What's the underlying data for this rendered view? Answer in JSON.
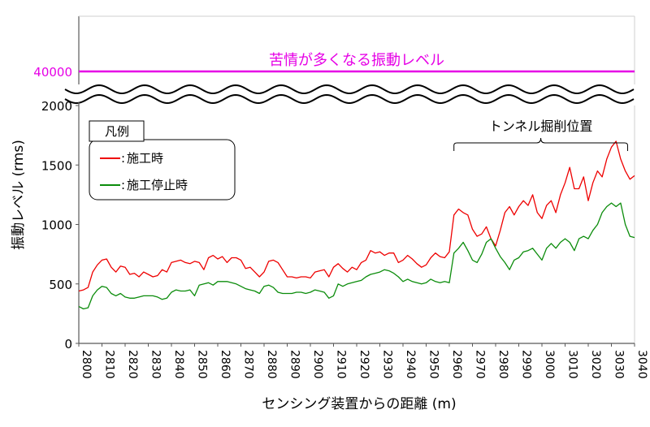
{
  "chart_data": {
    "type": "line",
    "xlabel": "センシング装置からの距離 (m)",
    "ylabel": "振動レベル (rms)",
    "xlim": [
      2800,
      3040
    ],
    "ylim": [
      0,
      2000
    ],
    "x_ticks": [
      2800,
      2810,
      2820,
      2830,
      2840,
      2850,
      2860,
      2870,
      2880,
      2890,
      2900,
      2910,
      2920,
      2930,
      2940,
      2950,
      2960,
      2970,
      2980,
      2990,
      3000,
      3010,
      3020,
      3030,
      3040
    ],
    "y_ticks": [
      0,
      500,
      1000,
      1500,
      2000
    ],
    "y_scale_note": "axis break between 2000 and 40000",
    "threshold": {
      "value": 40000,
      "value_label": "40000",
      "label": "苦情が多くなる振動レベル",
      "color": "#e600e6"
    },
    "legend": {
      "title": "凡例",
      "position": "top-left",
      "entries": [
        "施工時",
        "施工停止時"
      ]
    },
    "annotation": {
      "text": "トンネル掘削位置",
      "x_range": [
        2962,
        3037
      ]
    },
    "series": [
      {
        "name": "施工時",
        "color": "#ee0000",
        "x": [
          2800,
          2802,
          2804,
          2806,
          2808,
          2810,
          2812,
          2814,
          2816,
          2818,
          2820,
          2822,
          2824,
          2826,
          2828,
          2830,
          2832,
          2834,
          2836,
          2838,
          2840,
          2842,
          2844,
          2846,
          2848,
          2850,
          2852,
          2854,
          2856,
          2858,
          2860,
          2862,
          2864,
          2866,
          2868,
          2870,
          2872,
          2874,
          2876,
          2878,
          2880,
          2882,
          2884,
          2886,
          2888,
          2890,
          2892,
          2894,
          2896,
          2898,
          2900,
          2902,
          2904,
          2906,
          2908,
          2910,
          2912,
          2914,
          2916,
          2918,
          2920,
          2922,
          2924,
          2926,
          2928,
          2930,
          2932,
          2934,
          2936,
          2938,
          2940,
          2942,
          2944,
          2946,
          2948,
          2950,
          2952,
          2954,
          2956,
          2958,
          2960,
          2962,
          2964,
          2966,
          2968,
          2970,
          2972,
          2974,
          2976,
          2978,
          2980,
          2982,
          2984,
          2986,
          2988,
          2990,
          2992,
          2994,
          2996,
          2998,
          3000,
          3002,
          3004,
          3006,
          3008,
          3010,
          3012,
          3014,
          3016,
          3018,
          3020,
          3022,
          3024,
          3026,
          3028,
          3030,
          3032,
          3034,
          3036,
          3038,
          3040
        ],
        "values": [
          440,
          450,
          470,
          600,
          660,
          700,
          710,
          640,
          600,
          650,
          640,
          580,
          590,
          560,
          600,
          580,
          560,
          570,
          620,
          600,
          680,
          690,
          700,
          680,
          670,
          690,
          680,
          620,
          720,
          740,
          710,
          730,
          680,
          720,
          720,
          700,
          630,
          640,
          600,
          560,
          600,
          690,
          700,
          680,
          620,
          560,
          560,
          550,
          560,
          560,
          550,
          600,
          610,
          620,
          560,
          640,
          670,
          630,
          600,
          640,
          620,
          680,
          700,
          780,
          760,
          770,
          740,
          760,
          760,
          680,
          700,
          740,
          710,
          670,
          640,
          660,
          720,
          760,
          730,
          720,
          770,
          1080,
          1130,
          1100,
          1080,
          960,
          900,
          920,
          980,
          880,
          820,
          950,
          1100,
          1150,
          1080,
          1150,
          1200,
          1160,
          1250,
          1100,
          1050,
          1160,
          1200,
          1100,
          1250,
          1350,
          1480,
          1300,
          1300,
          1400,
          1200,
          1350,
          1450,
          1400,
          1550,
          1650,
          1700,
          1550,
          1450,
          1380,
          1410
        ]
      },
      {
        "name": "施工停止時",
        "color": "#0b8c0b",
        "x": [
          2800,
          2802,
          2804,
          2806,
          2808,
          2810,
          2812,
          2814,
          2816,
          2818,
          2820,
          2822,
          2824,
          2826,
          2828,
          2830,
          2832,
          2834,
          2836,
          2838,
          2840,
          2842,
          2844,
          2846,
          2848,
          2850,
          2852,
          2854,
          2856,
          2858,
          2860,
          2862,
          2864,
          2866,
          2868,
          2870,
          2872,
          2874,
          2876,
          2878,
          2880,
          2882,
          2884,
          2886,
          2888,
          2890,
          2892,
          2894,
          2896,
          2898,
          2900,
          2902,
          2904,
          2906,
          2908,
          2910,
          2912,
          2914,
          2916,
          2918,
          2920,
          2922,
          2924,
          2926,
          2928,
          2930,
          2932,
          2934,
          2936,
          2938,
          2940,
          2942,
          2944,
          2946,
          2948,
          2950,
          2952,
          2954,
          2956,
          2958,
          2960,
          2962,
          2964,
          2966,
          2968,
          2970,
          2972,
          2974,
          2976,
          2978,
          2980,
          2982,
          2984,
          2986,
          2988,
          2990,
          2992,
          2994,
          2996,
          2998,
          3000,
          3002,
          3004,
          3006,
          3008,
          3010,
          3012,
          3014,
          3016,
          3018,
          3020,
          3022,
          3024,
          3026,
          3028,
          3030,
          3032,
          3034,
          3036,
          3038,
          3040
        ],
        "values": [
          310,
          290,
          300,
          400,
          450,
          480,
          470,
          420,
          400,
          420,
          390,
          380,
          380,
          390,
          400,
          400,
          400,
          390,
          370,
          380,
          430,
          450,
          440,
          440,
          450,
          400,
          490,
          500,
          510,
          490,
          520,
          520,
          520,
          510,
          500,
          480,
          460,
          450,
          440,
          420,
          480,
          490,
          470,
          430,
          420,
          420,
          420,
          430,
          430,
          420,
          430,
          450,
          440,
          430,
          380,
          400,
          500,
          480,
          500,
          510,
          520,
          530,
          560,
          580,
          590,
          600,
          620,
          610,
          590,
          560,
          520,
          540,
          520,
          510,
          500,
          510,
          540,
          520,
          510,
          520,
          510,
          760,
          800,
          850,
          780,
          700,
          680,
          750,
          850,
          880,
          800,
          730,
          680,
          620,
          700,
          720,
          770,
          780,
          800,
          750,
          700,
          800,
          840,
          800,
          850,
          880,
          850,
          780,
          880,
          900,
          880,
          950,
          1000,
          1100,
          1150,
          1180,
          1150,
          1180,
          1000,
          900,
          890
        ]
      }
    ]
  }
}
